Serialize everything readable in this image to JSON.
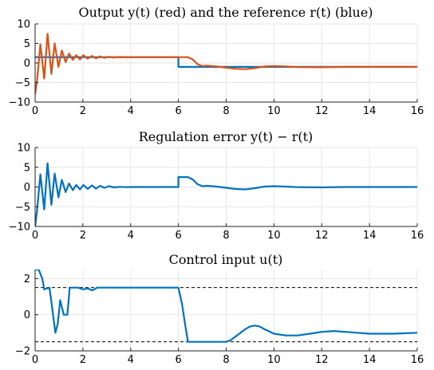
{
  "chart_data": [
    {
      "type": "line",
      "title": "Output y(t) (red) and the reference r(t) (blue)",
      "xlim": [
        0,
        16
      ],
      "ylim": [
        -10,
        10
      ],
      "xticks": [
        0,
        2,
        4,
        6,
        8,
        10,
        12,
        14,
        16
      ],
      "yticks": [
        -10,
        -5,
        0,
        5,
        10
      ],
      "grid": true,
      "series": [
        {
          "color": "#0072BD",
          "x": [
            0,
            6,
            6,
            16
          ],
          "y": [
            1.5,
            1.5,
            -1.0,
            -1.0
          ]
        },
        {
          "color": "#D95319",
          "x": [
            0,
            0.08,
            0.22,
            0.38,
            0.52,
            0.68,
            0.82,
            0.98,
            1.12,
            1.28,
            1.42,
            1.58,
            1.72,
            1.88,
            2.02,
            2.2,
            2.38,
            2.55,
            2.72,
            2.9,
            3.1,
            3.3,
            3.55,
            3.8,
            4.2,
            5.0,
            6.0,
            6.4,
            6.6,
            6.8,
            7.0,
            7.2,
            7.6,
            8.0,
            8.4,
            8.8,
            9.2,
            9.6,
            10.0,
            10.5,
            11.0,
            12.0,
            13.0,
            14.0,
            16.0
          ],
          "y": [
            -8.0,
            -4.5,
            4.8,
            -4.0,
            7.5,
            -2.8,
            5.0,
            -1.0,
            3.2,
            0.2,
            2.4,
            0.8,
            2.0,
            0.9,
            2.0,
            1.1,
            1.8,
            1.2,
            1.7,
            1.3,
            1.6,
            1.4,
            1.55,
            1.45,
            1.5,
            1.5,
            1.5,
            1.5,
            0.9,
            -0.3,
            -0.8,
            -0.7,
            -0.9,
            -1.2,
            -1.5,
            -1.6,
            -1.3,
            -0.9,
            -0.8,
            -0.9,
            -1.05,
            -1.1,
            -1.0,
            -1.0,
            -1.0
          ]
        }
      ]
    },
    {
      "type": "line",
      "title": "Regulation error y(t) − r(t)",
      "xlim": [
        0,
        16
      ],
      "ylim": [
        -10,
        10
      ],
      "xticks": [
        0,
        2,
        4,
        6,
        8,
        10,
        12,
        14,
        16
      ],
      "yticks": [
        -10,
        -5,
        0,
        5,
        10
      ],
      "grid": true,
      "series": [
        {
          "color": "#0072BD",
          "x": [
            0,
            0.08,
            0.22,
            0.38,
            0.52,
            0.68,
            0.82,
            0.98,
            1.12,
            1.28,
            1.42,
            1.58,
            1.72,
            1.88,
            2.02,
            2.2,
            2.38,
            2.55,
            2.72,
            2.9,
            3.1,
            3.3,
            3.55,
            3.8,
            4.2,
            5.0,
            6.0,
            6.0,
            6.4,
            6.6,
            6.8,
            7.0,
            7.2,
            7.6,
            8.0,
            8.4,
            8.8,
            9.2,
            9.6,
            10.0,
            10.5,
            11.0,
            12.0,
            13.0,
            14.0,
            16.0
          ],
          "y": [
            -10.0,
            -6.0,
            3.2,
            -5.7,
            6.0,
            -4.5,
            3.4,
            -2.6,
            1.8,
            -1.3,
            0.9,
            -0.8,
            0.5,
            -0.6,
            0.5,
            -0.5,
            0.4,
            -0.4,
            0.3,
            -0.2,
            0.2,
            -0.1,
            0.05,
            -0.05,
            0.0,
            0.0,
            0.0,
            2.5,
            2.5,
            1.9,
            0.7,
            0.2,
            0.3,
            0.1,
            -0.2,
            -0.5,
            -0.6,
            -0.3,
            0.1,
            0.2,
            0.1,
            -0.05,
            -0.1,
            0.0,
            0.0,
            0.0
          ]
        }
      ]
    },
    {
      "type": "line",
      "title": "Control input u(t)",
      "xlim": [
        0,
        16
      ],
      "ylim": [
        -2,
        2.5
      ],
      "xticks": [
        0,
        2,
        4,
        6,
        8,
        10,
        12,
        14,
        16
      ],
      "yticks": [
        -2,
        0,
        2
      ],
      "grid": true,
      "hlines": [
        1.5,
        -1.5
      ],
      "series": [
        {
          "color": "#0072BD",
          "x": [
            0,
            0.15,
            0.3,
            0.38,
            0.6,
            0.75,
            0.85,
            0.95,
            1.05,
            1.2,
            1.35,
            1.45,
            1.8,
            2.0,
            2.2,
            2.4,
            2.6,
            3.0,
            6.0,
            6.15,
            6.3,
            6.4,
            8.0,
            8.2,
            8.5,
            8.8,
            9.0,
            9.2,
            9.4,
            9.6,
            10.0,
            10.5,
            11.0,
            11.5,
            12.0,
            12.5,
            13.0,
            13.5,
            14.0,
            15.0,
            16.0
          ],
          "y": [
            2.5,
            2.5,
            2.0,
            1.4,
            1.5,
            0.0,
            -1.0,
            -0.5,
            0.8,
            0.0,
            0.0,
            1.5,
            1.5,
            1.4,
            1.45,
            1.35,
            1.5,
            1.5,
            1.5,
            0.6,
            -0.7,
            -1.5,
            -1.5,
            -1.4,
            -1.1,
            -0.8,
            -0.65,
            -0.6,
            -0.65,
            -0.8,
            -1.05,
            -1.15,
            -1.15,
            -1.05,
            -0.95,
            -0.9,
            -0.95,
            -1.0,
            -1.05,
            -1.05,
            -1.0
          ]
        }
      ]
    }
  ]
}
